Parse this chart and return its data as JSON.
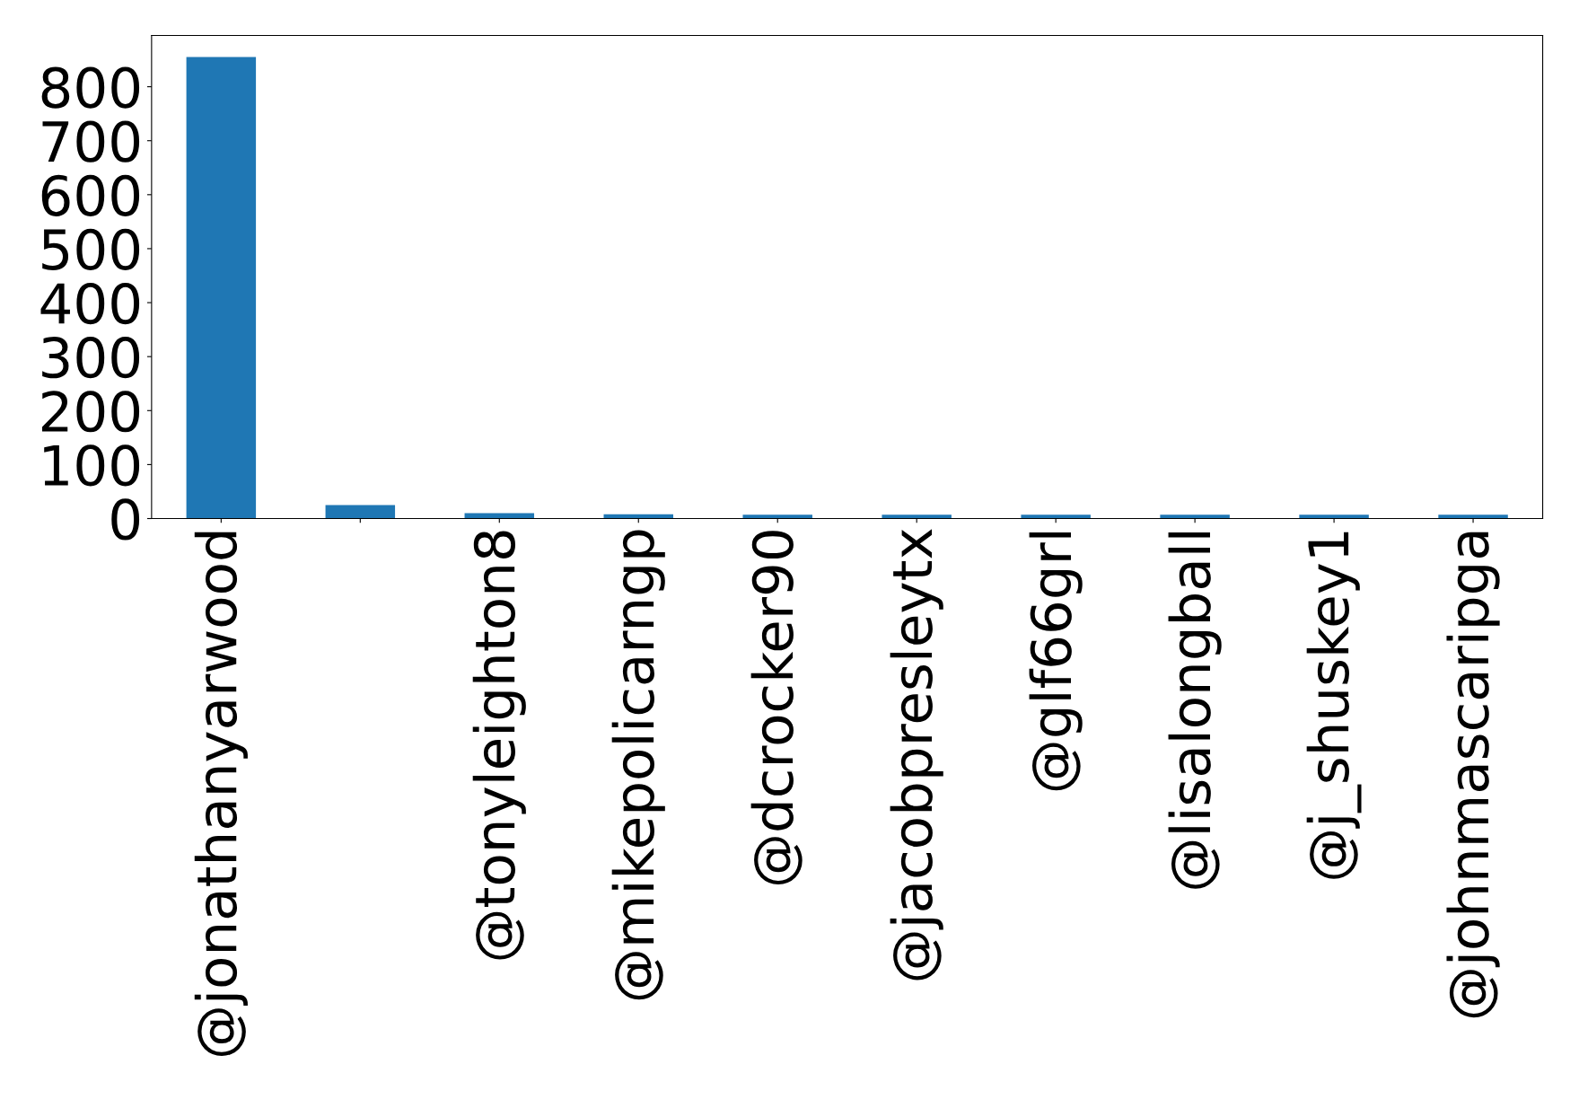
{
  "chart_data": {
    "type": "bar",
    "categories": [
      "@jonathanyarwood",
      null,
      "@tonyleighton8",
      "@mikepolicarngp",
      "@dcrocker90",
      "@jacobpresleytx",
      "@glf66grl",
      "@lisalongball",
      "@j_shuskey1",
      "@johnmascaripga"
    ],
    "values": [
      855,
      25,
      10,
      8,
      7,
      7,
      7,
      7,
      7,
      7
    ],
    "color": "#1f77b4",
    "ylim": [
      0,
      895
    ],
    "yticks": [
      0,
      100,
      200,
      300,
      400,
      500,
      600,
      700,
      800
    ],
    "grid": false,
    "legend": false
  }
}
